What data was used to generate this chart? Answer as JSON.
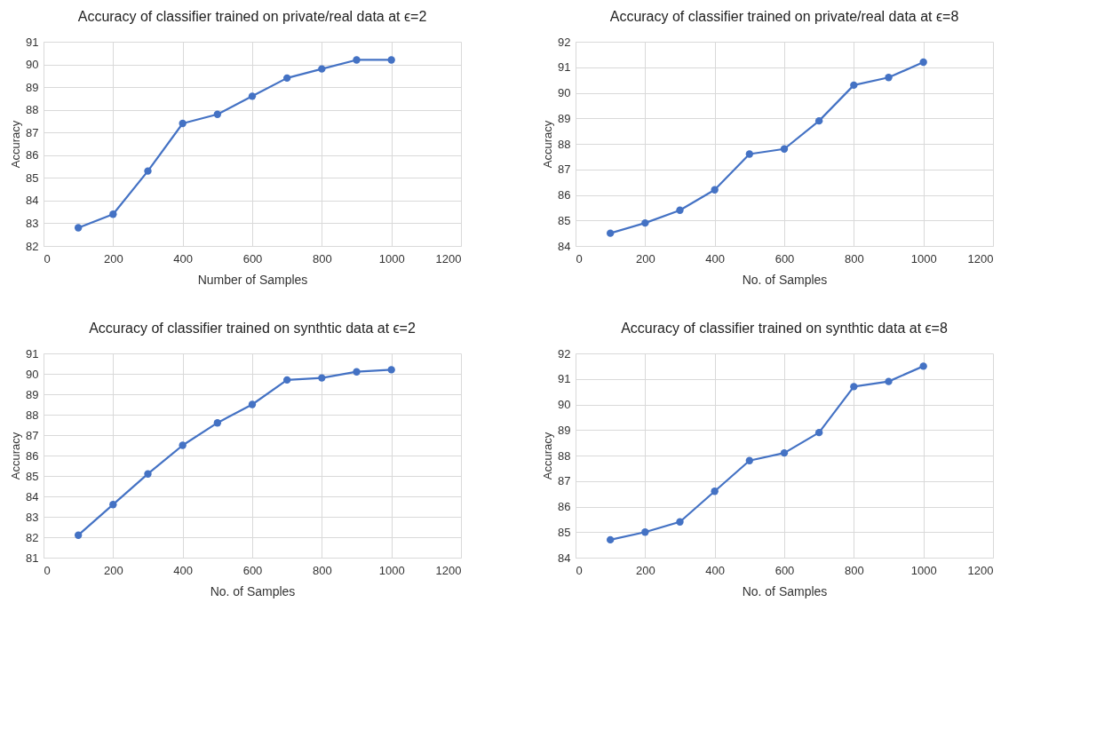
{
  "chart_data": [
    {
      "type": "line",
      "title": "Accuracy of classifier trained on private/real data at ϵ=2",
      "xlabel": "Number of Samples",
      "ylabel": "Accuracy",
      "x": [
        100,
        200,
        300,
        400,
        500,
        600,
        700,
        800,
        900,
        1000
      ],
      "series": [
        {
          "color": "#4472c4",
          "values": [
            82.8,
            83.4,
            85.3,
            87.4,
            87.8,
            88.6,
            89.4,
            89.8,
            90.2,
            90.2
          ]
        }
      ],
      "xlim": [
        0,
        1200
      ],
      "xticks": [
        0,
        200,
        400,
        600,
        800,
        1000,
        1200
      ],
      "ylim": [
        82,
        91
      ],
      "yticks": [
        82,
        83,
        84,
        85,
        86,
        87,
        88,
        89,
        90,
        91
      ],
      "grid": true,
      "marker": "circle",
      "line_style": "solid"
    },
    {
      "type": "line",
      "title": "Accuracy of classifier trained on private/real data at ϵ=8",
      "xlabel": "No. of Samples",
      "ylabel": "Accuracy",
      "x": [
        100,
        200,
        300,
        400,
        500,
        600,
        700,
        800,
        900,
        1000
      ],
      "series": [
        {
          "color": "#4472c4",
          "values": [
            84.5,
            84.9,
            85.4,
            86.2,
            87.6,
            87.8,
            88.9,
            90.3,
            90.6,
            91.2
          ]
        }
      ],
      "xlim": [
        0,
        1200
      ],
      "xticks": [
        0,
        200,
        400,
        600,
        800,
        1000,
        1200
      ],
      "ylim": [
        84,
        92
      ],
      "yticks": [
        84,
        85,
        86,
        87,
        88,
        89,
        90,
        91,
        92
      ],
      "grid": true,
      "marker": "circle",
      "line_style": "solid"
    },
    {
      "type": "line",
      "title": "Accuracy of classifier trained on synthtic data at ϵ=2",
      "xlabel": "No. of Samples",
      "ylabel": "Accuracy",
      "x": [
        100,
        200,
        300,
        400,
        500,
        600,
        700,
        800,
        900,
        1000
      ],
      "series": [
        {
          "color": "#4472c4",
          "values": [
            82.1,
            83.6,
            85.1,
            86.5,
            87.6,
            88.5,
            89.7,
            89.8,
            90.1,
            90.2
          ]
        }
      ],
      "xlim": [
        0,
        1200
      ],
      "xticks": [
        0,
        200,
        400,
        600,
        800,
        1000,
        1200
      ],
      "ylim": [
        81,
        91
      ],
      "yticks": [
        81,
        82,
        83,
        84,
        85,
        86,
        87,
        88,
        89,
        90,
        91
      ],
      "grid": true,
      "marker": "circle",
      "line_style": "solid"
    },
    {
      "type": "line",
      "title": "Accuracy of classifier trained on synthtic data at ϵ=8",
      "xlabel": "No. of Samples",
      "ylabel": "Accuracy",
      "x": [
        100,
        200,
        300,
        400,
        500,
        600,
        700,
        800,
        900,
        1000
      ],
      "series": [
        {
          "color": "#4472c4",
          "values": [
            84.7,
            85.0,
            85.4,
            86.6,
            87.8,
            88.1,
            88.9,
            90.7,
            90.9,
            91.5
          ]
        }
      ],
      "xlim": [
        0,
        1200
      ],
      "xticks": [
        0,
        200,
        400,
        600,
        800,
        1000,
        1200
      ],
      "ylim": [
        84,
        92
      ],
      "yticks": [
        84,
        85,
        86,
        87,
        88,
        89,
        90,
        91,
        92
      ],
      "grid": true,
      "marker": "circle",
      "line_style": "solid"
    }
  ]
}
